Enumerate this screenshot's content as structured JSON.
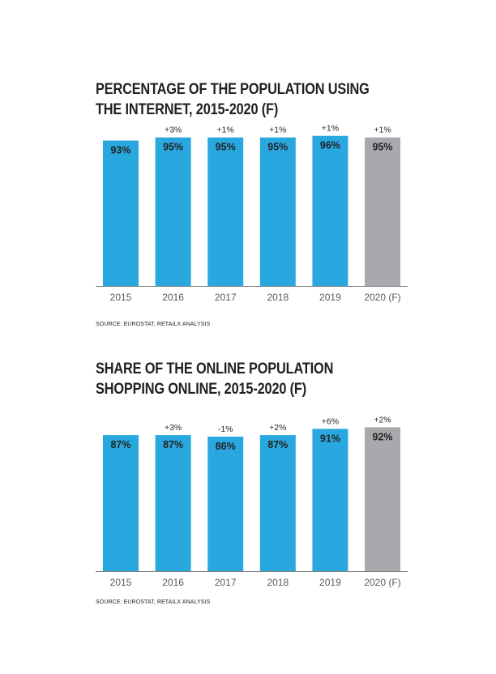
{
  "colors": {
    "actual_bar": "#29a8e0",
    "forecast_bar": "#a7a9ac",
    "axis_line": "#808285",
    "text": "#231f20",
    "axis_label": "#58595b"
  },
  "charts": [
    {
      "title_lines": [
        "PERCENTAGE OF THE POPULATION USING",
        "THE INTERNET, 2015-2020 (F)"
      ],
      "source": "SOURCE: EUROSTAT, RETAILX ANALYSIS"
    },
    {
      "title_lines": [
        "SHARE OF THE ONLINE POPULATION",
        "SHOPPING ONLINE, 2015-2020 (F)"
      ],
      "source": "SOURCE: EUROSTAT, RETAILX ANALYSIS"
    }
  ],
  "chart_data": [
    {
      "type": "bar",
      "title": "PERCENTAGE OF THE POPULATION USING THE INTERNET, 2015-2020 (F)",
      "categories": [
        "2015",
        "2016",
        "2017",
        "2018",
        "2019",
        "2020 (F)"
      ],
      "values": [
        93,
        95,
        95,
        95,
        96,
        95
      ],
      "value_labels": [
        "93%",
        "95%",
        "95%",
        "95%",
        "96%",
        "95%"
      ],
      "change_labels": [
        "",
        "+3%",
        "+1%",
        "+1%",
        "+1%",
        "+1%"
      ],
      "forecast": [
        false,
        false,
        false,
        false,
        false,
        true
      ],
      "ylim": [
        0,
        100
      ],
      "grid": false,
      "xlabel": "",
      "ylabel": ""
    },
    {
      "type": "bar",
      "title": "SHARE OF THE ONLINE POPULATION SHOPPING ONLINE, 2015-2020 (F)",
      "categories": [
        "2015",
        "2016",
        "2017",
        "2018",
        "2019",
        "2020 (F)"
      ],
      "values": [
        87,
        87,
        86,
        87,
        91,
        92
      ],
      "value_labels": [
        "87%",
        "87%",
        "86%",
        "87%",
        "91%",
        "92%"
      ],
      "change_labels": [
        "",
        "+3%",
        "-1%",
        "+2%",
        "+6%",
        "+2%"
      ],
      "forecast": [
        false,
        false,
        false,
        false,
        false,
        true
      ],
      "ylim": [
        0,
        100
      ],
      "grid": false,
      "xlabel": "",
      "ylabel": ""
    }
  ]
}
